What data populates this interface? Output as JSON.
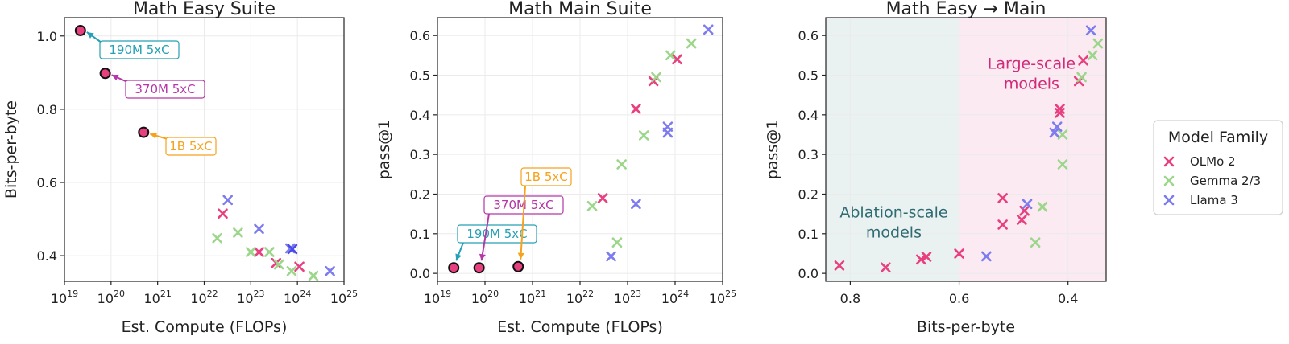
{
  "colors": {
    "olmo": "#e8407f",
    "gemma": "#9bd68a",
    "llama": "#7d7cee",
    "llama_dark": "#4a4ae8",
    "c190": "#26a0b5",
    "c370": "#b536a6",
    "c1b": "#f5a21d",
    "dot_fill": "#e8407f",
    "ablation_bg": "#eaf1f1",
    "large_bg": "#fbeaf1",
    "ablation_text": "#2e6b73",
    "large_text": "#d02a78"
  },
  "legend": {
    "title": "Model Family",
    "items": [
      {
        "label": "OLMo 2",
        "color_key": "olmo"
      },
      {
        "label": "Gemma 2/3",
        "color_key": "gemma"
      },
      {
        "label": "Llama 3",
        "color_key": "llama"
      }
    ]
  },
  "chart_data": [
    {
      "type": "scatter",
      "title": "Math Easy Suite",
      "xlabel": "Est. Compute (FLOPs)",
      "ylabel": "Bits-per-byte",
      "xscale": "log",
      "xlim": [
        1e+19,
        1e+25
      ],
      "ylim": [
        0.33,
        1.05
      ],
      "xticks": [
        {
          "base": "10",
          "exp": "19",
          "v": 1e+19
        },
        {
          "base": "10",
          "exp": "20",
          "v": 1e+20
        },
        {
          "base": "10",
          "exp": "21",
          "v": 1e+21
        },
        {
          "base": "10",
          "exp": "22",
          "v": 1e+22
        },
        {
          "base": "10",
          "exp": "23",
          "v": 1e+23
        },
        {
          "base": "10",
          "exp": "24",
          "v": 1e+24
        },
        {
          "base": "10",
          "exp": "25",
          "v": 1e+25
        }
      ],
      "yticks": [
        {
          "label": "0.4",
          "v": 0.4
        },
        {
          "label": "0.6",
          "v": 0.6
        },
        {
          "label": "0.8",
          "v": 0.8
        },
        {
          "label": "1.0",
          "v": 1.0
        }
      ],
      "points": [
        {
          "family": "olmo",
          "x": 2.5e+22,
          "y": 0.515
        },
        {
          "family": "olmo",
          "x": 1.5e+23,
          "y": 0.41
        },
        {
          "family": "olmo",
          "x": 3.5e+23,
          "y": 0.38
        },
        {
          "family": "olmo",
          "x": 1.1e+24,
          "y": 0.37
        },
        {
          "family": "gemma",
          "x": 1.9e+22,
          "y": 0.448
        },
        {
          "family": "gemma",
          "x": 5.3e+22,
          "y": 0.463
        },
        {
          "family": "gemma",
          "x": 1e+23,
          "y": 0.41
        },
        {
          "family": "gemma",
          "x": 2.5e+23,
          "y": 0.41
        },
        {
          "family": "gemma",
          "x": 4e+23,
          "y": 0.376
        },
        {
          "family": "gemma",
          "x": 7.5e+23,
          "y": 0.358
        },
        {
          "family": "gemma",
          "x": 2.2e+24,
          "y": 0.345
        },
        {
          "family": "llama",
          "x": 3.2e+22,
          "y": 0.552
        },
        {
          "family": "llama",
          "x": 1.5e+23,
          "y": 0.473
        },
        {
          "family": "llama",
          "x": 7e+23,
          "y": 0.42
        },
        {
          "family": "llama_dark",
          "x": 7.8e+23,
          "y": 0.418
        },
        {
          "family": "llama",
          "x": 5e+24,
          "y": 0.358
        }
      ],
      "highlights": [
        {
          "label": "190M 5xC",
          "color_key": "c190",
          "x": 2.2e+19,
          "y": 1.015,
          "label_side": "below"
        },
        {
          "label": "370M 5xC",
          "color_key": "c370",
          "x": 7.5e+19,
          "y": 0.898,
          "label_side": "below"
        },
        {
          "label": "1B 5xC",
          "color_key": "c1b",
          "x": 5e+20,
          "y": 0.737,
          "label_side": "below"
        }
      ]
    },
    {
      "type": "scatter",
      "title": "Math Main Suite",
      "xlabel": "Est. Compute (FLOPs)",
      "ylabel": "pass@1",
      "xscale": "log",
      "xlim": [
        1e+19,
        1e+25
      ],
      "ylim": [
        -0.02,
        0.645
      ],
      "xticks": [
        {
          "base": "10",
          "exp": "19",
          "v": 1e+19
        },
        {
          "base": "10",
          "exp": "20",
          "v": 1e+20
        },
        {
          "base": "10",
          "exp": "21",
          "v": 1e+21
        },
        {
          "base": "10",
          "exp": "22",
          "v": 1e+22
        },
        {
          "base": "10",
          "exp": "23",
          "v": 1e+23
        },
        {
          "base": "10",
          "exp": "24",
          "v": 1e+24
        },
        {
          "base": "10",
          "exp": "25",
          "v": 1e+25
        }
      ],
      "yticks": [
        {
          "label": "0.0",
          "v": 0.0
        },
        {
          "label": "0.1",
          "v": 0.1
        },
        {
          "label": "0.2",
          "v": 0.2
        },
        {
          "label": "0.3",
          "v": 0.3
        },
        {
          "label": "0.4",
          "v": 0.4
        },
        {
          "label": "0.5",
          "v": 0.5
        },
        {
          "label": "0.6",
          "v": 0.6
        }
      ],
      "points": [
        {
          "family": "olmo",
          "x": 3e+22,
          "y": 0.19
        },
        {
          "family": "olmo",
          "x": 1.5e+23,
          "y": 0.415
        },
        {
          "family": "olmo",
          "x": 3.5e+23,
          "y": 0.485
        },
        {
          "family": "olmo",
          "x": 1.1e+24,
          "y": 0.54
        },
        {
          "family": "gemma",
          "x": 1.8e+22,
          "y": 0.17
        },
        {
          "family": "gemma",
          "x": 6e+22,
          "y": 0.078
        },
        {
          "family": "gemma",
          "x": 7.5e+22,
          "y": 0.275
        },
        {
          "family": "gemma",
          "x": 2.2e+23,
          "y": 0.348
        },
        {
          "family": "gemma",
          "x": 4e+23,
          "y": 0.495
        },
        {
          "family": "gemma",
          "x": 8e+23,
          "y": 0.55
        },
        {
          "family": "gemma",
          "x": 2.2e+24,
          "y": 0.58
        },
        {
          "family": "llama",
          "x": 4.5e+22,
          "y": 0.043
        },
        {
          "family": "llama",
          "x": 1.5e+23,
          "y": 0.175
        },
        {
          "family": "llama",
          "x": 7e+23,
          "y": 0.355
        },
        {
          "family": "llama",
          "x": 7e+23,
          "y": 0.37
        },
        {
          "family": "llama",
          "x": 5e+24,
          "y": 0.615
        }
      ],
      "highlights": [
        {
          "label": "190M 5xC",
          "color_key": "c190",
          "x": 2.2e+19,
          "y": 0.014,
          "label_side": "above"
        },
        {
          "label": "370M 5xC",
          "color_key": "c370",
          "x": 7.5e+19,
          "y": 0.014,
          "label_side": "above"
        },
        {
          "label": "1B 5xC",
          "color_key": "c1b",
          "x": 5e+20,
          "y": 0.017,
          "label_side": "above"
        }
      ]
    },
    {
      "type": "scatter",
      "title": "Math Easy → Main",
      "xlabel": "Bits-per-byte",
      "ylabel": "pass@1",
      "xreversed": true,
      "xlim": [
        0.845,
        0.33
      ],
      "ylim": [
        -0.02,
        0.645
      ],
      "xticks": [
        {
          "label": "0.8",
          "v": 0.8
        },
        {
          "label": "0.6",
          "v": 0.6
        },
        {
          "label": "0.4",
          "v": 0.4
        }
      ],
      "yticks": [
        {
          "label": "0.0",
          "v": 0.0
        },
        {
          "label": "0.1",
          "v": 0.1
        },
        {
          "label": "0.2",
          "v": 0.2
        },
        {
          "label": "0.3",
          "v": 0.3
        },
        {
          "label": "0.4",
          "v": 0.4
        },
        {
          "label": "0.5",
          "v": 0.5
        },
        {
          "label": "0.6",
          "v": 0.6
        }
      ],
      "regions": [
        {
          "from": 0.845,
          "to": 0.6,
          "color_key": "ablation_bg",
          "label_lines": [
            "Ablation-scale",
            "models"
          ],
          "text_color_key": "ablation_text",
          "label_x": 0.72,
          "label_y": [
            0.155,
            0.105
          ]
        },
        {
          "from": 0.6,
          "to": 0.33,
          "color_key": "large_bg",
          "label_lines": [
            "Large-scale",
            "models"
          ],
          "text_color_key": "large_text",
          "label_x": 0.467,
          "label_y": [
            0.53,
            0.48
          ]
        }
      ],
      "points": [
        {
          "family": "olmo",
          "x": 0.82,
          "y": 0.02
        },
        {
          "family": "olmo",
          "x": 0.735,
          "y": 0.015
        },
        {
          "family": "olmo",
          "x": 0.67,
          "y": 0.035
        },
        {
          "family": "olmo",
          "x": 0.66,
          "y": 0.042
        },
        {
          "family": "olmo",
          "x": 0.6,
          "y": 0.05
        },
        {
          "family": "olmo",
          "x": 0.52,
          "y": 0.123
        },
        {
          "family": "olmo",
          "x": 0.52,
          "y": 0.19
        },
        {
          "family": "olmo",
          "x": 0.485,
          "y": 0.135
        },
        {
          "family": "olmo",
          "x": 0.48,
          "y": 0.158
        },
        {
          "family": "olmo",
          "x": 0.415,
          "y": 0.405
        },
        {
          "family": "olmo",
          "x": 0.415,
          "y": 0.415
        },
        {
          "family": "olmo",
          "x": 0.38,
          "y": 0.485
        },
        {
          "family": "olmo",
          "x": 0.372,
          "y": 0.537
        },
        {
          "family": "gemma",
          "x": 0.46,
          "y": 0.078
        },
        {
          "family": "gemma",
          "x": 0.447,
          "y": 0.168
        },
        {
          "family": "gemma",
          "x": 0.41,
          "y": 0.275
        },
        {
          "family": "gemma",
          "x": 0.41,
          "y": 0.35
        },
        {
          "family": "gemma",
          "x": 0.375,
          "y": 0.495
        },
        {
          "family": "gemma",
          "x": 0.355,
          "y": 0.55
        },
        {
          "family": "gemma",
          "x": 0.345,
          "y": 0.58
        },
        {
          "family": "llama",
          "x": 0.55,
          "y": 0.043
        },
        {
          "family": "llama",
          "x": 0.475,
          "y": 0.175
        },
        {
          "family": "llama",
          "x": 0.425,
          "y": 0.355
        },
        {
          "family": "llama",
          "x": 0.42,
          "y": 0.37
        },
        {
          "family": "llama",
          "x": 0.358,
          "y": 0.613
        }
      ]
    }
  ]
}
